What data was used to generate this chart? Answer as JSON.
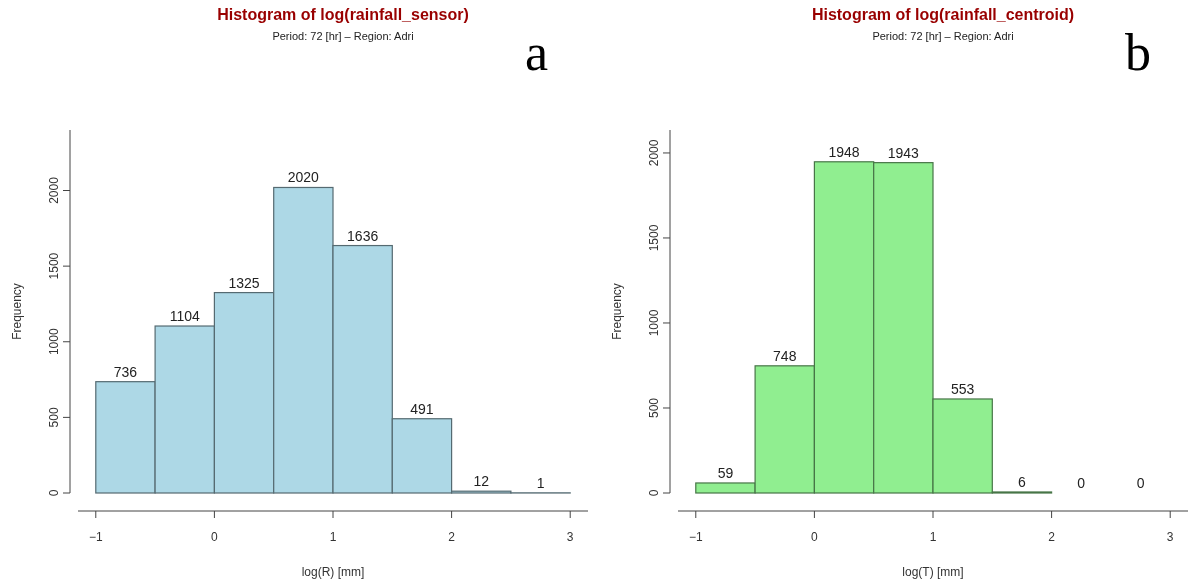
{
  "chart_data": [
    {
      "type": "histogram",
      "title": "Histogram of log(rainfall_sensor)",
      "subtitle": "Period: 72 [hr] – Region: Adri",
      "xlabel": "log(R) [mm]",
      "ylabel": "Frequency",
      "bins": [
        -1,
        -0.5,
        0,
        0.5,
        1,
        1.5,
        2,
        2.5,
        3
      ],
      "values": [
        736,
        1104,
        1325,
        2020,
        1636,
        491,
        12,
        1
      ],
      "color": "#add8e6",
      "xlim": [
        -1.15,
        3.15
      ],
      "xticks": [
        -1,
        0,
        1,
        2,
        3
      ],
      "ylim": [
        0,
        2400
      ],
      "yticks": [
        0,
        500,
        1000,
        1500,
        2000
      ],
      "data_labels": true,
      "grid": false,
      "annotations": [
        "a"
      ]
    },
    {
      "type": "histogram",
      "title": "Histogram of log(rainfall_centroid)",
      "subtitle": "Period: 72 [hr] – Region: Adri",
      "xlabel": "log(T) [mm]",
      "ylabel": "Frequency",
      "bins": [
        -1,
        -0.5,
        0,
        0.5,
        1,
        1.5,
        2,
        2.5,
        3
      ],
      "values": [
        59,
        748,
        1948,
        1943,
        553,
        6,
        0,
        0
      ],
      "color": "#90ee90",
      "xlim": [
        -1.15,
        3.15
      ],
      "xticks": [
        -1,
        0,
        1,
        2,
        3
      ],
      "ylim": [
        0,
        2135
      ],
      "yticks": [
        0,
        500,
        1000,
        1500,
        2000
      ],
      "data_labels": true,
      "grid": false,
      "annotations": [
        "b"
      ]
    }
  ]
}
